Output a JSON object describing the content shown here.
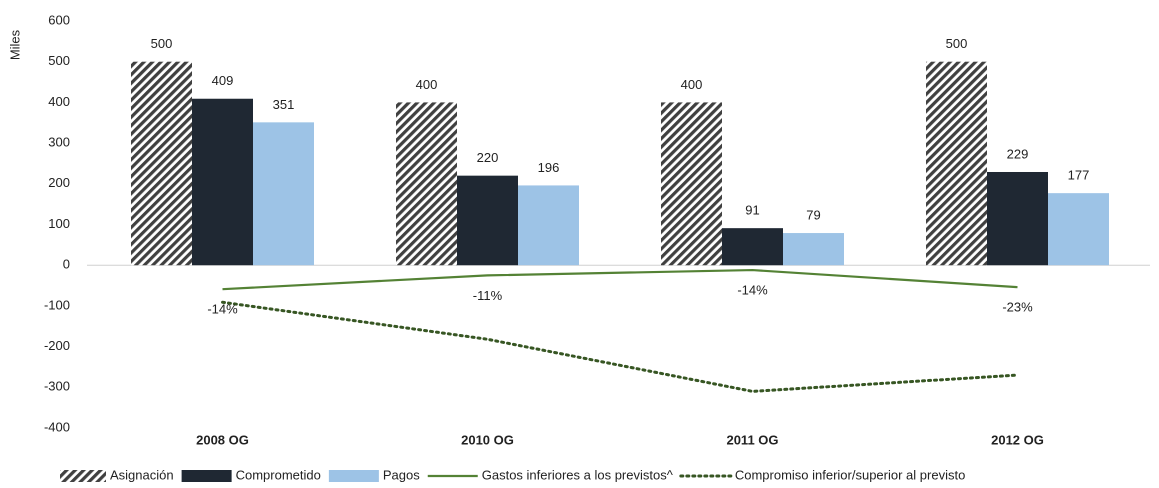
{
  "chart_data": {
    "type": "bar",
    "ylabel": "Miles",
    "categories": [
      "2008 OG",
      "2010 OG",
      "2011 OG",
      "2012 OG"
    ],
    "series": [
      {
        "name": "Asignación",
        "type": "bar",
        "color": "#404040",
        "pattern": "hatch",
        "values": [
          500,
          400,
          400,
          500
        ]
      },
      {
        "name": "Comprometido",
        "type": "bar",
        "color": "#1f2833",
        "values": [
          409,
          220,
          91,
          229
        ]
      },
      {
        "name": "Pagos",
        "type": "bar",
        "color": "#9dc3e6",
        "values": [
          351,
          196,
          79,
          177
        ]
      },
      {
        "name": "Gastos inferiores a los previstos^",
        "type": "line",
        "color": "#548235",
        "dash": "solid",
        "values": [
          -59,
          -25,
          -12,
          -54
        ]
      },
      {
        "name": "Compromiso inferior/superior al previsto",
        "type": "line",
        "color": "#375623",
        "dash": "dotted",
        "values": [
          -91,
          -182,
          -310,
          -270
        ]
      }
    ],
    "annotations": [
      "-14%",
      "-11%",
      "-14%",
      "-23%"
    ],
    "ylim": [
      -400,
      600
    ],
    "yticks": [
      -400,
      -300,
      -200,
      -100,
      0,
      100,
      200,
      300,
      400,
      500,
      600
    ],
    "grid": false,
    "legend": "bottom"
  }
}
